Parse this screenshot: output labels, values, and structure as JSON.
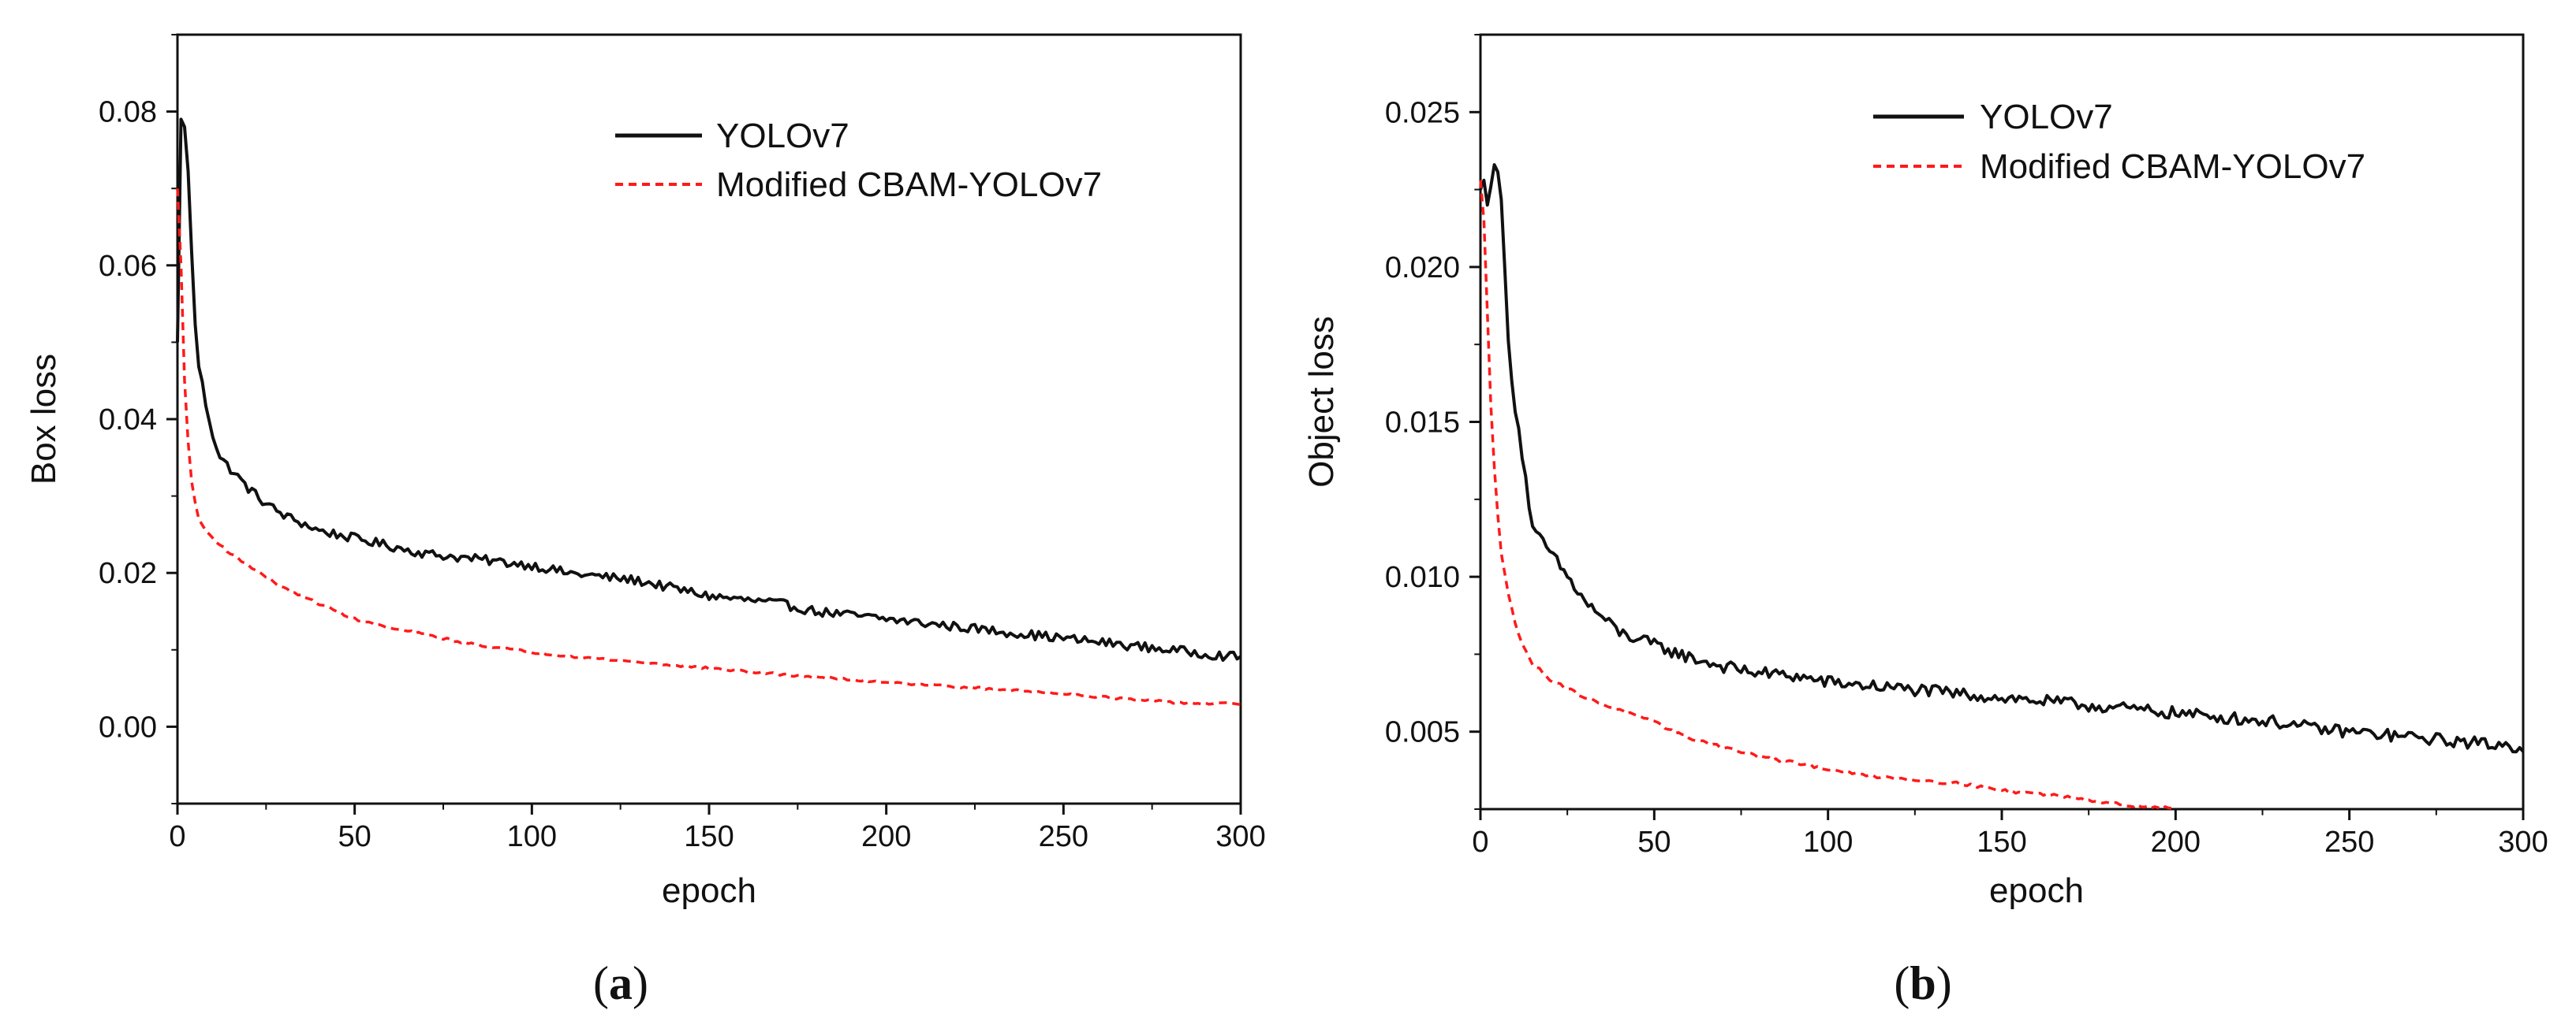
{
  "colors": {
    "yolov7": "#111111",
    "cbam": "#ff1a1a",
    "axis": "#111111"
  },
  "chart_data": [
    {
      "type": "line",
      "panel": "(a)",
      "panel_letter": "a",
      "title": "",
      "xlabel": "epoch",
      "ylabel": "Box loss",
      "xlim": [
        0,
        300
      ],
      "ylim": [
        -0.01,
        0.09
      ],
      "xticks": [
        0,
        50,
        100,
        150,
        200,
        250,
        300
      ],
      "xtick_labels": [
        "0",
        "50",
        "100",
        "150",
        "200",
        "250",
        "300"
      ],
      "yticks": [
        0.0,
        0.02,
        0.04,
        0.06,
        0.08
      ],
      "ytick_labels": [
        "0.00",
        "0.02",
        "0.04",
        "0.06",
        "0.08"
      ],
      "legend_position": "top-right",
      "series": [
        {
          "name": "YOLOv7",
          "style": "solid",
          "x": [
            0,
            1,
            2,
            3,
            4,
            5,
            6,
            8,
            10,
            12,
            15,
            20,
            25,
            30,
            35,
            40,
            50,
            60,
            70,
            80,
            90,
            100,
            110,
            120,
            130,
            140,
            150,
            160,
            170,
            180,
            190,
            200,
            210,
            220,
            230,
            240,
            250,
            260,
            270,
            280,
            290,
            300
          ],
          "values": [
            0.05,
            0.079,
            0.078,
            0.072,
            0.062,
            0.052,
            0.047,
            0.042,
            0.038,
            0.035,
            0.0335,
            0.031,
            0.029,
            0.0275,
            0.0265,
            0.0255,
            0.0245,
            0.0235,
            0.0225,
            0.022,
            0.0215,
            0.021,
            0.02,
            0.0195,
            0.019,
            0.018,
            0.017,
            0.0165,
            0.016,
            0.015,
            0.0145,
            0.014,
            0.0135,
            0.013,
            0.0125,
            0.012,
            0.0115,
            0.011,
            0.0105,
            0.01,
            0.0095,
            0.009
          ],
          "noise": 0.0006
        },
        {
          "name": "Modified CBAM-YOLOv7",
          "style": "dashed",
          "x": [
            0,
            1,
            2,
            3,
            4,
            5,
            6,
            8,
            10,
            15,
            20,
            25,
            30,
            40,
            50,
            60,
            70,
            80,
            90,
            100,
            110,
            120,
            130,
            140,
            150,
            160,
            170,
            180,
            190,
            200,
            210,
            220,
            230,
            240,
            250,
            260,
            270,
            280,
            290,
            300
          ],
          "values": [
            0.07,
            0.06,
            0.045,
            0.037,
            0.032,
            0.029,
            0.027,
            0.0255,
            0.0245,
            0.0225,
            0.021,
            0.0195,
            0.018,
            0.016,
            0.014,
            0.0128,
            0.012,
            0.011,
            0.0103,
            0.0097,
            0.0092,
            0.0088,
            0.0084,
            0.008,
            0.0076,
            0.0072,
            0.0068,
            0.0065,
            0.0061,
            0.0058,
            0.0055,
            0.0052,
            0.0049,
            0.0046,
            0.0043,
            0.0039,
            0.0035,
            0.0032,
            0.003,
            0.003
          ],
          "noise": 0.00015
        }
      ]
    },
    {
      "type": "line",
      "panel": "(b)",
      "panel_letter": "b",
      "title": "",
      "xlabel": "epoch",
      "ylabel": "Object loss",
      "xlim": [
        0,
        300
      ],
      "ylim": [
        0.0025,
        0.0275
      ],
      "xticks": [
        0,
        50,
        100,
        150,
        200,
        250,
        300
      ],
      "xtick_labels": [
        "0",
        "50",
        "100",
        "150",
        "200",
        "250",
        "300"
      ],
      "yticks": [
        0.005,
        0.01,
        0.015,
        0.02,
        0.025
      ],
      "ytick_labels": [
        "0.005",
        "0.010",
        "0.015",
        "0.020",
        "0.025"
      ],
      "legend_position": "top-right",
      "series": [
        {
          "name": "YOLOv7",
          "style": "solid",
          "x": [
            0,
            1,
            2,
            3,
            4,
            5,
            6,
            7,
            8,
            10,
            12,
            15,
            20,
            25,
            30,
            35,
            40,
            50,
            60,
            70,
            80,
            90,
            100,
            110,
            120,
            130,
            140,
            150,
            160,
            170,
            180,
            190,
            200,
            210,
            220,
            230,
            240,
            250,
            260,
            270,
            280,
            290,
            300
          ],
          "values": [
            0.0225,
            0.0228,
            0.022,
            0.0225,
            0.0235,
            0.0232,
            0.022,
            0.02,
            0.0175,
            0.0155,
            0.014,
            0.0115,
            0.0108,
            0.01,
            0.0092,
            0.0087,
            0.0082,
            0.0078,
            0.0074,
            0.0071,
            0.0069,
            0.0068,
            0.0066,
            0.0065,
            0.0064,
            0.0063,
            0.0062,
            0.0061,
            0.006,
            0.0059,
            0.0058,
            0.0057,
            0.0056,
            0.0055,
            0.0054,
            0.0053,
            0.0051,
            0.005,
            0.0049,
            0.0048,
            0.0047,
            0.0046,
            0.0045
          ],
          "noise": 0.0002
        },
        {
          "name": "Modified CBAM-YOLOv7",
          "style": "dashed",
          "x": [
            0,
            1,
            2,
            3,
            4,
            5,
            6,
            8,
            10,
            12,
            15,
            20,
            25,
            30,
            40,
            50,
            60,
            70,
            80,
            90,
            100,
            110,
            120,
            130,
            140,
            150,
            160,
            170,
            180,
            190,
            200
          ],
          "values": [
            0.0228,
            0.0215,
            0.0185,
            0.0155,
            0.0135,
            0.012,
            0.0108,
            0.0095,
            0.0085,
            0.0078,
            0.0072,
            0.0067,
            0.0064,
            0.0061,
            0.0057,
            0.0053,
            0.0048,
            0.0045,
            0.0042,
            0.004,
            0.0038,
            0.0036,
            0.0035,
            0.0034,
            0.0033,
            0.0031,
            0.003,
            0.0029,
            0.0027,
            0.0026,
            0.0025
          ],
          "noise": 5e-05
        }
      ]
    }
  ]
}
